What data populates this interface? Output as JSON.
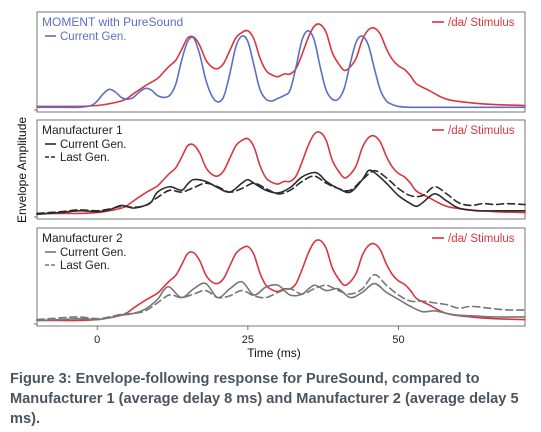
{
  "caption": "Figure 3: Envelope-following response for PureSound, compared to Manufacturer 1 (average delay 8 ms) and Manufacturer 2 (average delay 5 ms).",
  "colors": {
    "stimulus": "#d9363e",
    "puresound": "#5b6fc4",
    "m1": "#2b2b2b",
    "m2": "#777777"
  },
  "chart_data": {
    "type": "line",
    "xlabel": "Time (ms)",
    "ylabel": "Envelope Amplitude",
    "xlim": [
      -10,
      71
    ],
    "x_ticks": [
      0,
      25,
      50
    ],
    "panels": [
      {
        "title": "MOMENT with PureSound",
        "ylim": [
          0,
          1
        ],
        "series": [
          {
            "name": "/da/ Stimulus",
            "color": "#d9363e",
            "dash": false,
            "x": [
              -10,
              -6,
              -3,
              0,
              2,
              4,
              5,
              6,
              8,
              10,
              11,
              12,
              13,
              14,
              15,
              16,
              17,
              18,
              19,
              20,
              21,
              22,
              23,
              24,
              25,
              26,
              27,
              28,
              29,
              30,
              31,
              32,
              33,
              34,
              35,
              36,
              37,
              38,
              39,
              40,
              41,
              42,
              43,
              44,
              45,
              46,
              47,
              48,
              49,
              50,
              51,
              52,
              53,
              55,
              58,
              62,
              66,
              71
            ],
            "y": [
              0.04,
              0.04,
              0.04,
              0.05,
              0.07,
              0.1,
              0.13,
              0.18,
              0.27,
              0.35,
              0.42,
              0.49,
              0.55,
              0.67,
              0.8,
              0.81,
              0.72,
              0.56,
              0.48,
              0.46,
              0.52,
              0.66,
              0.8,
              0.86,
              0.88,
              0.79,
              0.58,
              0.44,
              0.39,
              0.37,
              0.4,
              0.4,
              0.46,
              0.62,
              0.8,
              0.93,
              0.95,
              0.86,
              0.64,
              0.52,
              0.44,
              0.48,
              0.58,
              0.78,
              0.89,
              0.91,
              0.84,
              0.68,
              0.56,
              0.49,
              0.45,
              0.38,
              0.29,
              0.22,
              0.12,
              0.08,
              0.06,
              0.05
            ]
          },
          {
            "name": "Current Gen.",
            "color": "#5b6fc4",
            "dash": false,
            "x": [
              -10,
              -6,
              -3,
              -1,
              0,
              1,
              2,
              3,
              4,
              5,
              6,
              7,
              8,
              9,
              10,
              11,
              12,
              13,
              14,
              15,
              16,
              17,
              18,
              19,
              20,
              21,
              22,
              23,
              24,
              25,
              26,
              27,
              28,
              29,
              30,
              31,
              32,
              33,
              34,
              35,
              36,
              37,
              38,
              39,
              40,
              41,
              42,
              43,
              44,
              45,
              46,
              47,
              48,
              49,
              50,
              52,
              55,
              60,
              66,
              71
            ],
            "y": [
              0.03,
              0.03,
              0.03,
              0.05,
              0.1,
              0.18,
              0.23,
              0.2,
              0.14,
              0.12,
              0.14,
              0.2,
              0.24,
              0.22,
              0.16,
              0.14,
              0.16,
              0.28,
              0.55,
              0.76,
              0.8,
              0.62,
              0.34,
              0.16,
              0.09,
              0.15,
              0.4,
              0.7,
              0.82,
              0.76,
              0.5,
              0.23,
              0.12,
              0.1,
              0.13,
              0.16,
              0.22,
              0.48,
              0.78,
              0.88,
              0.78,
              0.48,
              0.22,
              0.12,
              0.12,
              0.24,
              0.52,
              0.76,
              0.82,
              0.72,
              0.46,
              0.22,
              0.1,
              0.06,
              0.04,
              0.03,
              0.03,
              0.03,
              0.03,
              0.03
            ]
          }
        ]
      },
      {
        "title": "Manufacturer 1",
        "ylim": [
          0,
          1
        ],
        "series": [
          {
            "name": "/da/ Stimulus",
            "color": "#d9363e",
            "dash": false,
            "x": [
              -10,
              -6,
              -3,
              0,
              2,
              4,
              5,
              6,
              8,
              10,
              11,
              12,
              13,
              14,
              15,
              16,
              17,
              18,
              19,
              20,
              21,
              22,
              23,
              24,
              25,
              26,
              27,
              28,
              29,
              30,
              31,
              32,
              33,
              34,
              35,
              36,
              37,
              38,
              39,
              40,
              41,
              42,
              43,
              44,
              45,
              46,
              47,
              48,
              49,
              50,
              51,
              52,
              53,
              55,
              58,
              62,
              66,
              71
            ],
            "y": [
              0.04,
              0.04,
              0.04,
              0.05,
              0.07,
              0.1,
              0.13,
              0.18,
              0.27,
              0.35,
              0.42,
              0.49,
              0.55,
              0.67,
              0.8,
              0.81,
              0.72,
              0.56,
              0.48,
              0.46,
              0.52,
              0.66,
              0.8,
              0.86,
              0.88,
              0.79,
              0.58,
              0.44,
              0.39,
              0.37,
              0.4,
              0.4,
              0.46,
              0.62,
              0.8,
              0.93,
              0.95,
              0.86,
              0.64,
              0.52,
              0.44,
              0.48,
              0.58,
              0.78,
              0.89,
              0.91,
              0.84,
              0.68,
              0.56,
              0.49,
              0.45,
              0.38,
              0.29,
              0.22,
              0.12,
              0.08,
              0.06,
              0.05
            ]
          },
          {
            "name": "Current Gen.",
            "color": "#2b2b2b",
            "dash": false,
            "x": [
              -10,
              -6,
              -3,
              0,
              2,
              4,
              6,
              8,
              9,
              10,
              12,
              14,
              15,
              16,
              18,
              20,
              22,
              24,
              25,
              26,
              28,
              30,
              32,
              34,
              36,
              37,
              38,
              40,
              42,
              44,
              45,
              46,
              48,
              50,
              52,
              53,
              54,
              56,
              58,
              60,
              63,
              66,
              71
            ],
            "y": [
              0.03,
              0.05,
              0.07,
              0.06,
              0.08,
              0.13,
              0.1,
              0.13,
              0.17,
              0.28,
              0.34,
              0.3,
              0.37,
              0.42,
              0.4,
              0.33,
              0.28,
              0.38,
              0.42,
              0.38,
              0.3,
              0.27,
              0.33,
              0.45,
              0.5,
              0.47,
              0.4,
              0.32,
              0.28,
              0.42,
              0.52,
              0.5,
              0.38,
              0.24,
              0.15,
              0.12,
              0.16,
              0.26,
              0.18,
              0.1,
              0.07,
              0.07,
              0.07
            ]
          },
          {
            "name": "Last Gen.",
            "color": "#2b2b2b",
            "dash": true,
            "x": [
              -10,
              -6,
              -3,
              0,
              2,
              4,
              6,
              8,
              10,
              12,
              14,
              16,
              18,
              20,
              22,
              24,
              26,
              28,
              30,
              32,
              34,
              36,
              38,
              40,
              42,
              44,
              46,
              48,
              50,
              52,
              54,
              56,
              58,
              60,
              62,
              64,
              66,
              68,
              71
            ],
            "y": [
              0.04,
              0.06,
              0.08,
              0.07,
              0.09,
              0.12,
              0.11,
              0.13,
              0.22,
              0.3,
              0.28,
              0.33,
              0.38,
              0.34,
              0.28,
              0.32,
              0.38,
              0.32,
              0.26,
              0.3,
              0.4,
              0.46,
              0.38,
              0.32,
              0.3,
              0.42,
              0.52,
              0.44,
              0.32,
              0.24,
              0.24,
              0.34,
              0.26,
              0.16,
              0.13,
              0.15,
              0.14,
              0.15,
              0.14
            ]
          }
        ]
      },
      {
        "title": "Manufacturer 2",
        "ylim": [
          0,
          1
        ],
        "series": [
          {
            "name": "/da/ Stimulus",
            "color": "#d9363e",
            "dash": false,
            "x": [
              -10,
              -6,
              -3,
              0,
              2,
              4,
              5,
              6,
              8,
              10,
              11,
              12,
              13,
              14,
              15,
              16,
              17,
              18,
              19,
              20,
              21,
              22,
              23,
              24,
              25,
              26,
              27,
              28,
              29,
              30,
              31,
              32,
              33,
              34,
              35,
              36,
              37,
              38,
              39,
              40,
              41,
              42,
              43,
              44,
              45,
              46,
              47,
              48,
              49,
              50,
              51,
              52,
              53,
              55,
              58,
              62,
              66,
              71
            ],
            "y": [
              0.04,
              0.04,
              0.04,
              0.05,
              0.07,
              0.1,
              0.13,
              0.18,
              0.27,
              0.35,
              0.42,
              0.49,
              0.55,
              0.67,
              0.8,
              0.81,
              0.72,
              0.56,
              0.48,
              0.46,
              0.52,
              0.66,
              0.8,
              0.86,
              0.88,
              0.79,
              0.58,
              0.44,
              0.39,
              0.37,
              0.4,
              0.4,
              0.46,
              0.62,
              0.8,
              0.93,
              0.95,
              0.86,
              0.64,
              0.52,
              0.44,
              0.48,
              0.58,
              0.78,
              0.89,
              0.91,
              0.84,
              0.68,
              0.56,
              0.49,
              0.45,
              0.38,
              0.29,
              0.22,
              0.12,
              0.08,
              0.06,
              0.05
            ]
          },
          {
            "name": "Current Gen.",
            "color": "#777777",
            "dash": false,
            "x": [
              -10,
              -6,
              -3,
              0,
              2,
              4,
              6,
              8,
              10,
              11,
              12,
              14,
              16,
              18,
              20,
              22,
              24,
              26,
              28,
              30,
              32,
              34,
              36,
              38,
              40,
              42,
              44,
              46,
              48,
              50,
              52,
              54,
              56,
              58,
              60,
              63,
              66,
              71
            ],
            "y": [
              0.04,
              0.05,
              0.06,
              0.05,
              0.07,
              0.1,
              0.12,
              0.17,
              0.28,
              0.38,
              0.42,
              0.3,
              0.4,
              0.46,
              0.3,
              0.4,
              0.48,
              0.33,
              0.42,
              0.44,
              0.33,
              0.34,
              0.44,
              0.38,
              0.4,
              0.3,
              0.36,
              0.46,
              0.36,
              0.28,
              0.2,
              0.14,
              0.15,
              0.12,
              0.1,
              0.09,
              0.08,
              0.08
            ]
          },
          {
            "name": "Last Gen.",
            "color": "#777777",
            "dash": true,
            "x": [
              -10,
              -6,
              -3,
              0,
              2,
              4,
              6,
              8,
              10,
              12,
              14,
              16,
              18,
              20,
              22,
              24,
              26,
              28,
              30,
              32,
              34,
              36,
              38,
              40,
              42,
              44,
              46,
              48,
              50,
              52,
              54,
              56,
              58,
              60,
              62,
              65,
              68,
              71
            ],
            "y": [
              0.05,
              0.07,
              0.08,
              0.06,
              0.08,
              0.11,
              0.12,
              0.15,
              0.24,
              0.33,
              0.3,
              0.34,
              0.38,
              0.3,
              0.32,
              0.38,
              0.32,
              0.3,
              0.36,
              0.4,
              0.34,
              0.4,
              0.44,
              0.38,
              0.34,
              0.4,
              0.56,
              0.44,
              0.33,
              0.26,
              0.26,
              0.24,
              0.22,
              0.18,
              0.2,
              0.18,
              0.16,
              0.16
            ]
          }
        ]
      }
    ]
  }
}
